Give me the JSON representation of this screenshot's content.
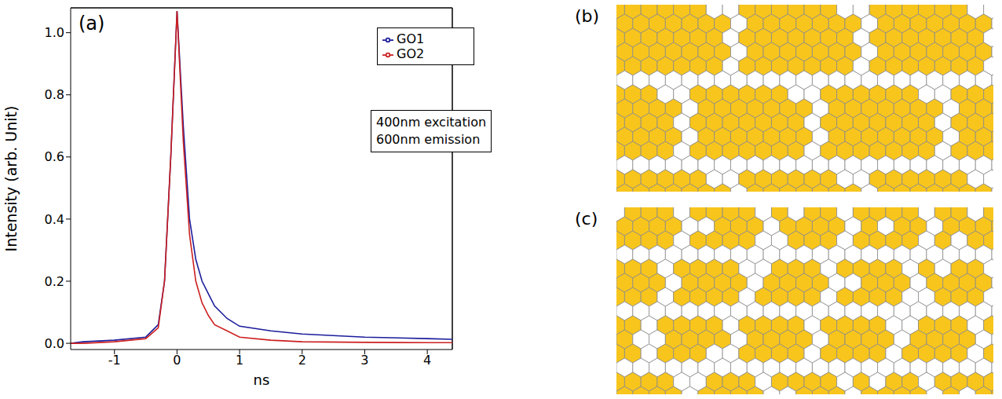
{
  "chart_data": {
    "type": "line",
    "x_label": "ns",
    "y_label": "Intensity (arb. Unit)",
    "annotations": [
      "(a)",
      "400nm excitation",
      "600nm emission"
    ],
    "x": [
      -1.7,
      -1.5,
      -1.0,
      -0.5,
      -0.3,
      -0.2,
      -0.1,
      0,
      0.1,
      0.2,
      0.3,
      0.4,
      0.5,
      0.6,
      0.8,
      1.0,
      1.5,
      2,
      3,
      4,
      4.4
    ],
    "series": [
      {
        "name": "GO1",
        "color": "#1c1c9c",
        "values": [
          0.0,
          0.005,
          0.01,
          0.02,
          0.06,
          0.2,
          0.6,
          1.07,
          0.7,
          0.4,
          0.27,
          0.2,
          0.16,
          0.12,
          0.08,
          0.055,
          0.04,
          0.03,
          0.02,
          0.015,
          0.013
        ]
      },
      {
        "name": "GO2",
        "color": "#cc2020",
        "values": [
          0.0,
          0.0,
          0.005,
          0.015,
          0.05,
          0.2,
          0.6,
          1.07,
          0.65,
          0.35,
          0.2,
          0.13,
          0.09,
          0.06,
          0.04,
          0.02,
          0.01,
          0.005,
          0.003,
          0.002,
          0.002
        ]
      }
    ],
    "xlim": [
      -1.7,
      4.4
    ],
    "xticks": [
      -1,
      0,
      1,
      2,
      3,
      4
    ],
    "ylim": [
      -0.02,
      1.08
    ],
    "yticks": [
      {
        "value": 0,
        "label": "0.0"
      },
      0.2,
      0.4,
      0.6,
      0.8,
      {
        "value": 1,
        "label": "1.0"
      }
    ],
    "legend": "top-right",
    "grid": false
  },
  "panels": {
    "b": {
      "label": "(b)"
    },
    "c": {
      "label": "(c)"
    }
  }
}
